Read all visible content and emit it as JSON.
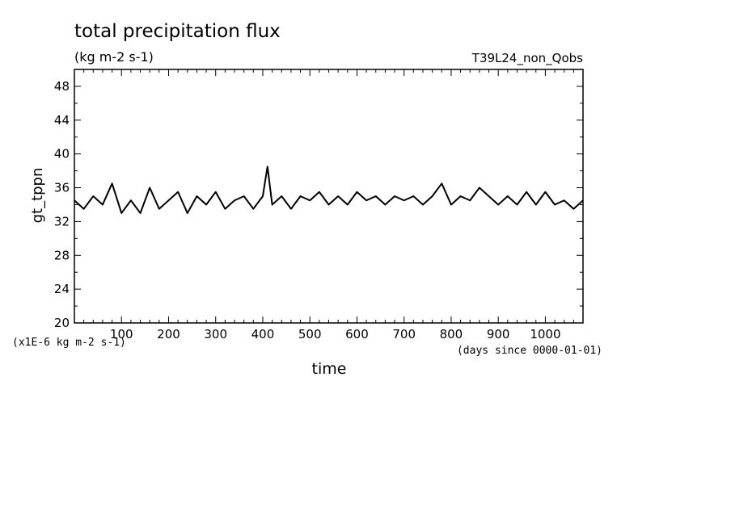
{
  "chart_data": {
    "type": "line",
    "title": "total precipitation flux",
    "subtitle": "(kg m-2 s-1)",
    "run_label": "T39L24_non_Qobs",
    "xlabel": "time",
    "x_units": "(days since 0000-01-01)",
    "ylabel": "gt_tppn",
    "y_scale_note": "(x1E-6 kg m-2 s-1)",
    "xlim": [
      0,
      1080
    ],
    "ylim": [
      20,
      50
    ],
    "x_tick_labels": [
      "100",
      "200",
      "300",
      "400",
      "500",
      "600",
      "700",
      "800",
      "900",
      "1000"
    ],
    "y_tick_labels": [
      "20",
      "24",
      "28",
      "32",
      "36",
      "40",
      "44",
      "48"
    ],
    "line_color": "#000000",
    "series": [
      {
        "x": [
          0,
          20,
          40,
          60,
          80,
          100,
          120,
          140,
          160,
          180,
          200,
          220,
          240,
          260,
          280,
          300,
          320,
          340,
          360,
          380,
          400,
          410,
          420,
          440,
          460,
          480,
          500,
          520,
          540,
          560,
          580,
          600,
          620,
          640,
          660,
          680,
          700,
          720,
          740,
          760,
          780,
          800,
          820,
          840,
          860,
          880,
          900,
          920,
          940,
          960,
          980,
          1000,
          1020,
          1040,
          1060,
          1080
        ],
        "values": [
          34.5,
          33.5,
          35.0,
          34.0,
          36.5,
          33.0,
          34.5,
          33.0,
          36.0,
          33.5,
          34.5,
          35.5,
          33.0,
          35.0,
          34.0,
          35.5,
          33.5,
          34.5,
          35.0,
          33.5,
          35.0,
          38.5,
          34.0,
          35.0,
          33.5,
          35.0,
          34.5,
          35.5,
          34.0,
          35.0,
          34.0,
          35.5,
          34.5,
          35.0,
          34.0,
          35.0,
          34.5,
          35.0,
          34.0,
          35.0,
          36.5,
          34.0,
          35.0,
          34.5,
          36.0,
          35.0,
          34.0,
          35.0,
          34.0,
          35.5,
          34.0,
          35.5,
          34.0,
          34.5,
          33.5,
          34.5
        ]
      }
    ]
  }
}
